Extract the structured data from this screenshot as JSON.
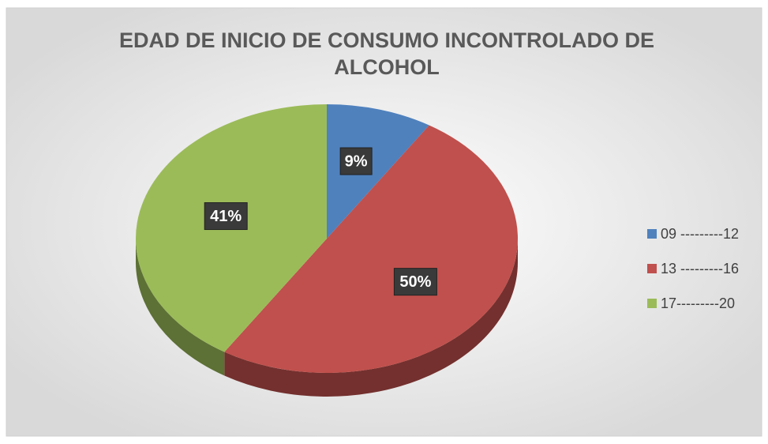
{
  "chart_data": {
    "type": "pie",
    "title": "EDAD DE INICIO DE CONSUMO INCONTROLADO DE ALCOHOL",
    "categories": [
      "09 ---------12",
      "13 ---------16",
      "17---------20"
    ],
    "values": [
      9,
      50,
      41
    ],
    "value_labels": [
      "9%",
      "50%",
      "41%"
    ],
    "colors": [
      "#4f81bd",
      "#c0504d",
      "#9bbb59"
    ],
    "legend": "right"
  }
}
